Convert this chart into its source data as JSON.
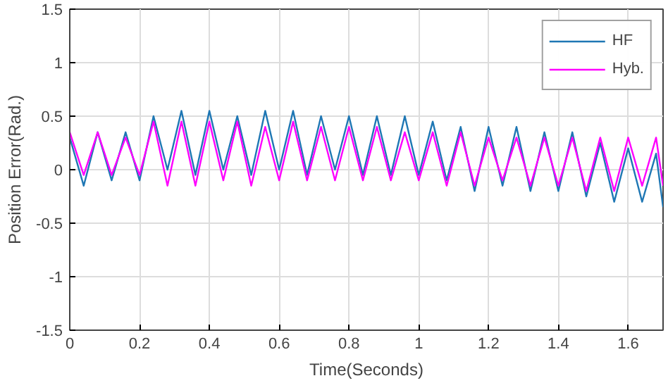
{
  "chart_data": {
    "type": "line",
    "xlabel": "Time(Seconds)",
    "ylabel": "Position Error(Rad.)",
    "x": [
      0,
      0.04,
      0.08,
      0.12,
      0.16,
      0.2,
      0.24,
      0.28,
      0.32,
      0.36,
      0.4,
      0.44,
      0.48,
      0.52,
      0.56,
      0.6,
      0.64,
      0.68,
      0.72,
      0.76,
      0.8,
      0.84,
      0.88,
      0.92,
      0.96,
      1.0,
      1.04,
      1.08,
      1.12,
      1.16,
      1.2,
      1.24,
      1.28,
      1.32,
      1.36,
      1.4,
      1.44,
      1.48,
      1.52,
      1.56,
      1.6,
      1.64,
      1.68,
      1.7
    ],
    "series": [
      {
        "name": "HF",
        "color": "#1f77b4",
        "values": [
          0.3,
          -0.15,
          0.35,
          -0.1,
          0.35,
          -0.1,
          0.5,
          0.0,
          0.55,
          -0.05,
          0.55,
          0.0,
          0.5,
          -0.05,
          0.55,
          0.0,
          0.55,
          -0.05,
          0.5,
          0.0,
          0.5,
          -0.05,
          0.5,
          -0.05,
          0.5,
          -0.05,
          0.45,
          -0.1,
          0.4,
          -0.2,
          0.4,
          -0.15,
          0.4,
          -0.2,
          0.35,
          -0.2,
          0.35,
          -0.25,
          0.25,
          -0.3,
          0.2,
          -0.3,
          0.15,
          -0.35
        ]
      },
      {
        "name": "Hyb.",
        "color": "#ff00ff",
        "values": [
          0.35,
          -0.05,
          0.35,
          -0.05,
          0.3,
          -0.05,
          0.45,
          -0.15,
          0.45,
          -0.15,
          0.45,
          -0.1,
          0.45,
          -0.15,
          0.4,
          -0.1,
          0.45,
          -0.1,
          0.4,
          -0.1,
          0.4,
          -0.1,
          0.4,
          -0.1,
          0.35,
          -0.1,
          0.35,
          -0.15,
          0.35,
          -0.15,
          0.3,
          -0.1,
          0.3,
          -0.15,
          0.3,
          -0.15,
          0.3,
          -0.2,
          0.3,
          -0.2,
          0.3,
          -0.15,
          0.3,
          -0.15
        ]
      }
    ],
    "xlim": [
      0,
      1.7
    ],
    "ylim": [
      -1.5,
      1.5
    ],
    "xticks": [
      0,
      0.2,
      0.4,
      0.6,
      0.8,
      1,
      1.2,
      1.4,
      1.6
    ],
    "yticks": [
      -1.5,
      -1,
      -0.5,
      0,
      0.5,
      1,
      1.5
    ],
    "grid": true,
    "legend": "top right",
    "line_style": "solid"
  }
}
